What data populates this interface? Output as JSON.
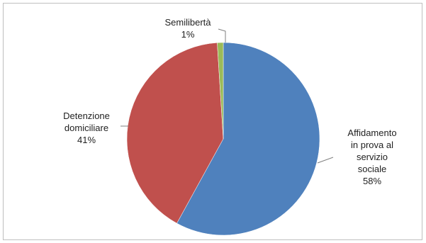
{
  "chart_data": {
    "type": "pie",
    "slices": [
      {
        "label": "Affidamento in prova al servizio sociale",
        "label_lines": [
          "Affidamento",
          "in prova al",
          "servizio",
          "sociale"
        ],
        "value": 58,
        "percent_label": "58%",
        "color": "#4f81bd"
      },
      {
        "label": "Detenzione domiciliare",
        "label_lines": [
          "Detenzione",
          "domiciliare"
        ],
        "value": 41,
        "percent_label": "41%",
        "color": "#c0504d"
      },
      {
        "label": "Semilibertà",
        "label_lines": [
          "Semilibertà"
        ],
        "value": 1,
        "percent_label": "1%",
        "color": "#9bbb59"
      }
    ],
    "legend": "none"
  }
}
